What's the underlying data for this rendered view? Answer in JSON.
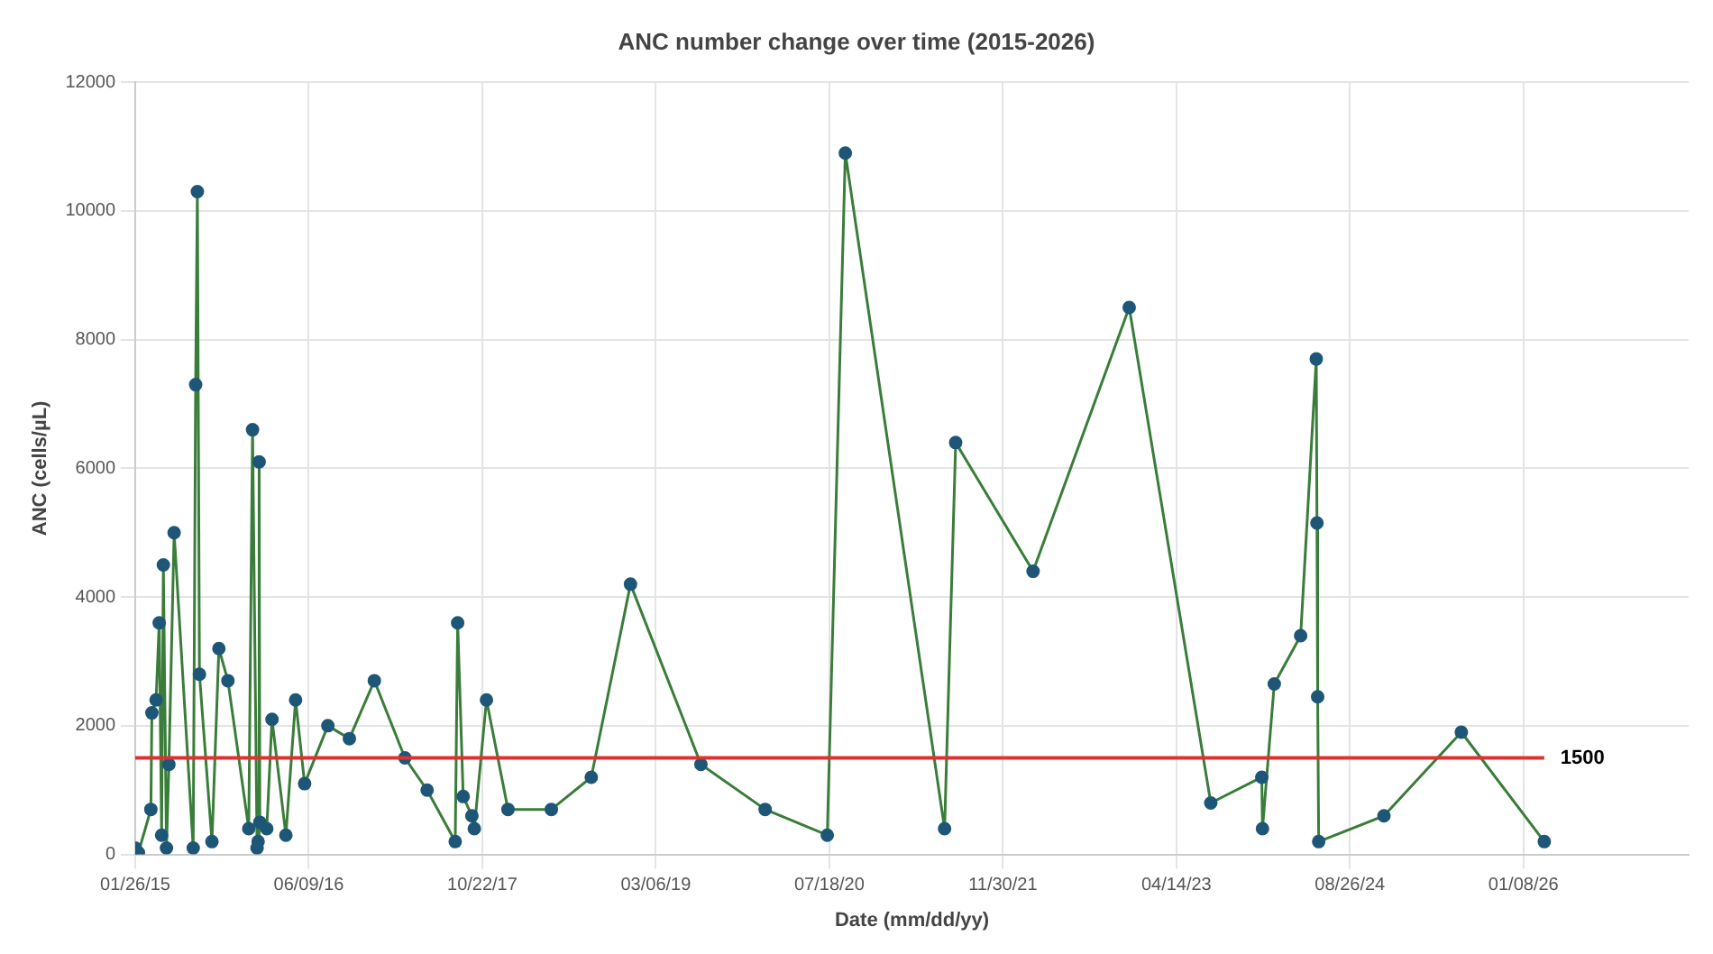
{
  "chart_data": {
    "type": "line",
    "title": "ANC number change over time (2015-2026)",
    "xlabel": "Date (mm/dd/yy)",
    "ylabel": "ANC (cells/µL)",
    "x": [
      "2015-01-26",
      "2015-02-04",
      "2015-03-12",
      "2015-03-15",
      "2015-03-27",
      "2015-04-05",
      "2015-04-12",
      "2015-04-17",
      "2015-04-26",
      "2015-05-03",
      "2015-05-18",
      "2015-07-12",
      "2015-07-19",
      "2015-07-24",
      "2015-07-30",
      "2015-09-04",
      "2015-09-24",
      "2015-10-20",
      "2015-12-19",
      "2015-12-30",
      "2016-01-12",
      "2016-01-15",
      "2016-01-18",
      "2016-01-20",
      "2016-02-09",
      "2016-02-24",
      "2016-04-04",
      "2016-05-02",
      "2016-05-28",
      "2016-08-03",
      "2016-10-04",
      "2016-12-15",
      "2017-03-13",
      "2017-05-16",
      "2017-08-05",
      "2017-08-12",
      "2017-08-28",
      "2017-09-22",
      "2017-09-29",
      "2017-11-03",
      "2018-01-04",
      "2018-05-09",
      "2018-09-01",
      "2018-12-23",
      "2019-07-14",
      "2020-01-15",
      "2020-07-12",
      "2020-09-02",
      "2021-06-15",
      "2021-07-17",
      "2022-02-25",
      "2022-11-29",
      "2023-07-22",
      "2023-12-16",
      "2023-12-18",
      "2024-01-21",
      "2024-04-06",
      "2024-05-21",
      "2024-05-23",
      "2024-05-25",
      "2024-05-28",
      "2024-12-02",
      "2025-07-13",
      "2026-03-09"
    ],
    "series": [
      {
        "color": "#3a7d3a",
        "values": [
          100,
          30,
          700,
          2200,
          2400,
          3600,
          300,
          4500,
          100,
          1400,
          5000,
          100,
          7300,
          10300,
          2800,
          200,
          3200,
          2700,
          400,
          6600,
          100,
          200,
          6100,
          500,
          400,
          2100,
          300,
          2400,
          1100,
          2000,
          1800,
          2700,
          1500,
          1000,
          200,
          3600,
          900,
          600,
          400,
          2400,
          700,
          700,
          1200,
          4200,
          1400,
          700,
          300,
          10900,
          400,
          6400,
          4400,
          8500,
          800,
          1200,
          400,
          2650,
          3400,
          7700,
          5150,
          2450,
          200,
          600,
          1900,
          200
        ]
      }
    ],
    "marker": "circle",
    "grid": true,
    "xlim": [
      "2015-01-26",
      "2027-04-29"
    ],
    "xticks": [
      {
        "value": "2015-01-26",
        "label": "01/26/15"
      },
      {
        "value": "2016-06-09",
        "label": "06/09/16"
      },
      {
        "value": "2017-10-22",
        "label": "10/22/17"
      },
      {
        "value": "2019-03-06",
        "label": "03/06/19"
      },
      {
        "value": "2020-07-18",
        "label": "07/18/20"
      },
      {
        "value": "2021-11-30",
        "label": "11/30/21"
      },
      {
        "value": "2023-04-14",
        "label": "04/14/23"
      },
      {
        "value": "2024-08-26",
        "label": "08/26/24"
      },
      {
        "value": "2026-01-08",
        "label": "01/08/26"
      }
    ],
    "ylim": [
      0,
      12000
    ],
    "yticks": [
      0,
      2000,
      4000,
      6000,
      8000,
      10000,
      12000
    ],
    "ref_lines": [
      {
        "axis": "y",
        "value": 1500,
        "label": "1500",
        "color": "#e03030"
      }
    ]
  }
}
